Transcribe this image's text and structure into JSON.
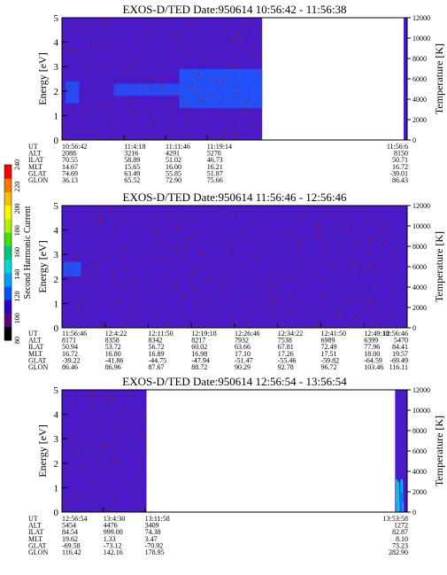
{
  "chart_data": [
    {
      "type": "heatmap",
      "title": "EXOS-D/TED  Date:950614  10:56:42 - 11:56:38",
      "ylabel": "Energy [eV]",
      "y2label": "Temperature [K]",
      "yticks": [
        "0",
        "1",
        "2",
        "3",
        "4",
        "5"
      ],
      "ylim": [
        0,
        5
      ],
      "y2ticks": [
        "0",
        "2000",
        "4000",
        "6000",
        "8000",
        "10000",
        "12000"
      ],
      "y2lim": [
        0,
        12000
      ],
      "data_extent": [
        0,
        0.58
      ],
      "row_labels": [
        "UT",
        "ALT",
        "ILAT",
        "MLT",
        "GLAT",
        "GLON"
      ],
      "columns": [
        {
          "pos": 0.0,
          "values": [
            "10:56:42",
            "2088",
            "70.55",
            "14.67",
            "74.69",
            "36.13"
          ]
        },
        {
          "pos": 0.18,
          "values": [
            "11:4:18",
            "3216",
            "58.89",
            "15.65",
            "63.49",
            "65.52"
          ]
        },
        {
          "pos": 0.3,
          "values": [
            "11:11:46",
            "4291",
            "51.02",
            "16.00",
            "55.85",
            "72.90"
          ]
        },
        {
          "pos": 0.42,
          "values": [
            "11:19:14",
            "5270",
            "46.73",
            "16.21",
            "51.87",
            "75.66"
          ]
        },
        {
          "pos": 1.0,
          "values": [
            "11:56:6",
            "8150",
            "50.71",
            "16.72",
            "-39.01",
            "86.43"
          ]
        }
      ]
    },
    {
      "type": "heatmap",
      "title": "EXOS-D/TED  Date:950614  11:56:46 - 12:56:46",
      "ylabel": "Energy [eV]",
      "y2label": "Temperature [K]",
      "yticks": [
        "0",
        "1",
        "2",
        "3",
        "4",
        "5"
      ],
      "ylim": [
        0,
        5
      ],
      "y2ticks": [
        "0",
        "2000",
        "4000",
        "6000",
        "8000",
        "10000",
        "12000"
      ],
      "y2lim": [
        0,
        12000
      ],
      "data_extent": [
        0,
        1.0
      ],
      "row_labels": [
        "UT",
        "ALT",
        "ILAT",
        "MLT",
        "GLAT",
        "GLON"
      ],
      "columns": [
        {
          "pos": 0.0,
          "values": [
            "11:56:46",
            "8171",
            "50.94",
            "16.72",
            "-39.22",
            "86.46"
          ]
        },
        {
          "pos": 0.125,
          "values": [
            "12:4:22",
            "8358",
            "53.72",
            "16.80",
            "-41.86",
            "86.96"
          ]
        },
        {
          "pos": 0.25,
          "values": [
            "12:11:50",
            "8342",
            "56.72",
            "16.89",
            "-44.75",
            "87.67"
          ]
        },
        {
          "pos": 0.375,
          "values": [
            "12:19:18",
            "8217",
            "60.02",
            "16.98",
            "-47.94",
            "88.72"
          ]
        },
        {
          "pos": 0.5,
          "values": [
            "12:26:46",
            "7932",
            "63.66",
            "17.10",
            "-51.47",
            "90.29"
          ]
        },
        {
          "pos": 0.625,
          "values": [
            "12:34:22",
            "7538",
            "67.81",
            "17.26",
            "-55.46",
            "92.78"
          ]
        },
        {
          "pos": 0.75,
          "values": [
            "12:41:50",
            "6989",
            "72.49",
            "17.51",
            "-59.82",
            "96.72"
          ]
        },
        {
          "pos": 0.875,
          "values": [
            "12:49:18",
            "6399",
            "77.96",
            "18.00",
            "-64.59",
            "103.46"
          ]
        },
        {
          "pos": 1.0,
          "values": [
            "12:56:46",
            "5470",
            "84.41",
            "19.57",
            "-69.49",
            "116.11"
          ]
        }
      ]
    },
    {
      "type": "heatmap",
      "title": "EXOS-D/TED  Date:950614  12:56:54 - 13:56:54",
      "ylabel": "Energy [eV]",
      "y2label": "Temperature [K]",
      "yticks": [
        "0",
        "1",
        "2",
        "3",
        "4",
        "5"
      ],
      "ylim": [
        0,
        5
      ],
      "y2ticks": [
        "0",
        "2000",
        "4000",
        "6000",
        "8000",
        "10000",
        "12000"
      ],
      "y2lim": [
        0,
        12000
      ],
      "data_extent": [
        0,
        0.245
      ],
      "right_strip": [
        0.965,
        1.0
      ],
      "row_labels": [
        "UT",
        "ALT",
        "ILAT",
        "MLT",
        "GLAT",
        "GLON"
      ],
      "columns": [
        {
          "pos": 0.0,
          "values": [
            "12:56:54",
            "5454",
            "84.54",
            "19.62",
            "-69.58",
            "116.42"
          ]
        },
        {
          "pos": 0.12,
          "values": [
            "13:4:30",
            "4476",
            "999.00",
            "1.33",
            "-73.12",
            "142.16"
          ]
        },
        {
          "pos": 0.24,
          "values": [
            "13:11:58",
            "3409",
            "74.38",
            "3.47",
            "-70.92",
            "178.95"
          ]
        },
        {
          "pos": 1.0,
          "values": [
            "13:53:58",
            "1272",
            "82.87",
            "8.10",
            "73.23",
            "282.90"
          ]
        }
      ]
    }
  ],
  "colorbar": {
    "label": "Second Harmonic Current",
    "ticks": [
      "80",
      "100",
      "120",
      "140",
      "160",
      "180",
      "200",
      "220",
      "240"
    ],
    "range": [
      80,
      240
    ],
    "colors": [
      "#000000",
      "#5a0080",
      "#2800c8",
      "#0050ff",
      "#00a0ff",
      "#00d8d8",
      "#00c878",
      "#40e000",
      "#b0f000",
      "#f8f800",
      "#f8c000",
      "#f87800",
      "#f80000"
    ]
  },
  "colors": {
    "background": "#4a1ac8",
    "speckle": "#8a2040",
    "band": "#1e58ff",
    "axis": "#000000"
  }
}
